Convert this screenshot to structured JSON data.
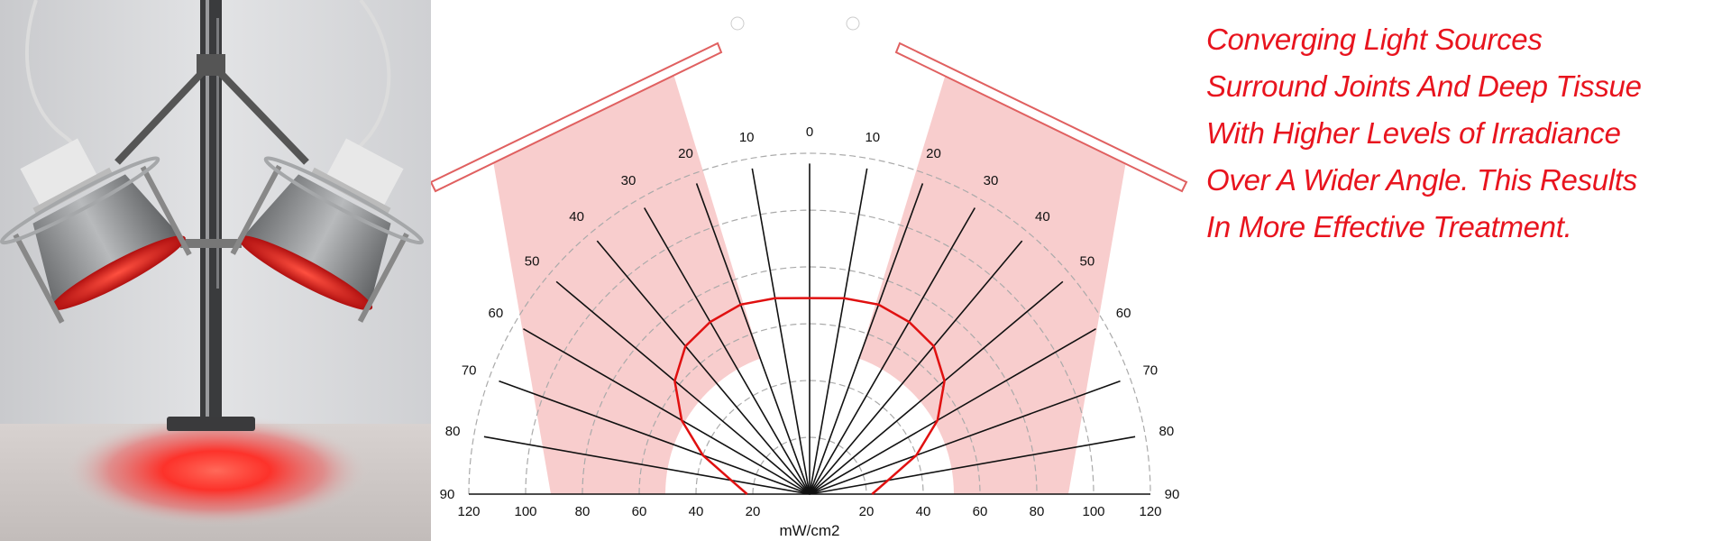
{
  "caption": {
    "lines": [
      "Converging Light Sources",
      "Surround Joints And Deep Tissue",
      "With Higher Levels of Irradiance",
      "Over A Wider  Angle. This Results",
      "In More Effective Treatment."
    ]
  },
  "diagram": {
    "angle_labels_left": [
      "0",
      "10",
      "20",
      "30",
      "40",
      "50",
      "60",
      "70",
      "80",
      "90"
    ],
    "angle_labels_right": [
      "10",
      "20",
      "30",
      "40",
      "50",
      "60",
      "70",
      "80",
      "90"
    ],
    "radial_labels_left": [
      "120",
      "100",
      "80",
      "60",
      "40",
      "20"
    ],
    "radial_labels_right": [
      "20",
      "40",
      "60",
      "80",
      "100",
      "120"
    ],
    "unit_label": "mW/cm2",
    "colors": {
      "curve": "#e01010",
      "beam": "#f5b8b8",
      "spoke": "#111111",
      "grid": "#aaaaaa"
    }
  },
  "chart_data": {
    "type": "polar",
    "angle_unit": "degrees",
    "radius_unit": "mW/cm2",
    "r_max": 120,
    "r_ticks": [
      20,
      40,
      60,
      80,
      100,
      120
    ],
    "angles": [
      -90,
      -80,
      -70,
      -60,
      -50,
      -40,
      -30,
      -20,
      -10,
      0,
      10,
      20,
      30,
      40,
      50,
      60,
      70,
      80,
      90
    ],
    "irradiance": [
      22,
      28,
      40,
      52,
      62,
      68,
      70,
      71,
      70,
      69,
      70,
      71,
      70,
      68,
      62,
      52,
      40,
      28,
      22
    ]
  },
  "photo": {
    "colors": {
      "wall": "#d8d9dc",
      "table": "#cfcac8",
      "glow": "#ff2020",
      "pole": "#2e2e30",
      "housing": "#8a8c8e"
    }
  }
}
